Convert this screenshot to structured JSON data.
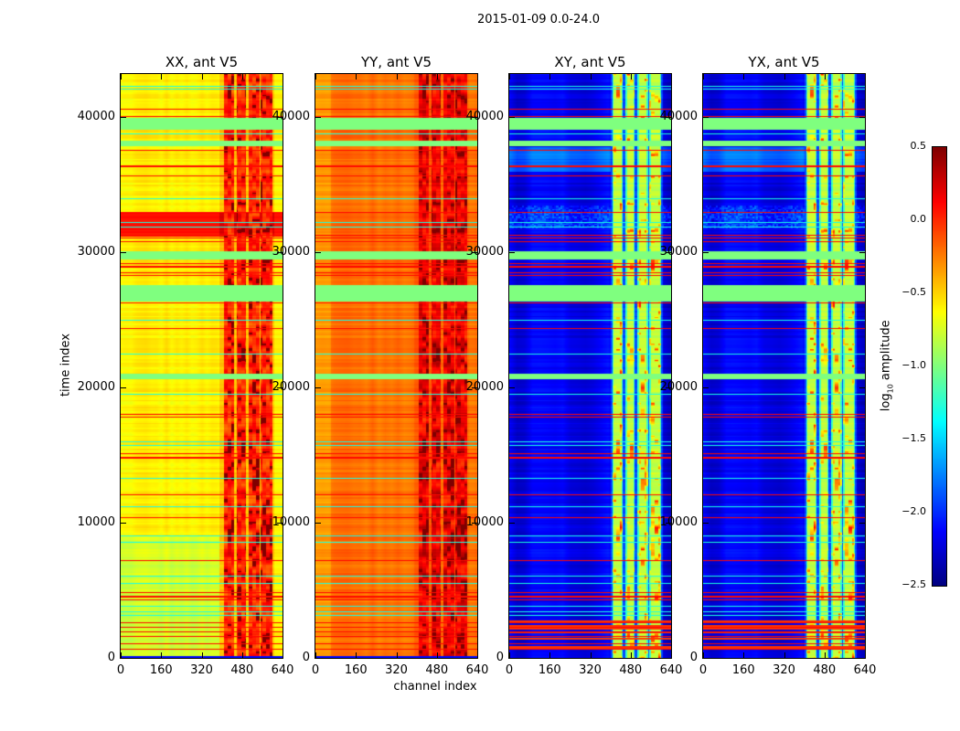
{
  "figure": {
    "suptitle": "2015-01-09 0.0-24.0",
    "xlabel": "channel index",
    "ylabel": "time index"
  },
  "chart_data": [
    {
      "type": "heatmap",
      "title": "XX, ant V5",
      "xlim": [
        0,
        640
      ],
      "ylim": [
        0,
        43200
      ],
      "xticks": [
        "0",
        "160",
        "320",
        "480",
        "640"
      ],
      "yticks": [
        "0",
        "10000",
        "20000",
        "30000",
        "40000"
      ],
      "base": -0.6,
      "rfi_level": 0.05,
      "profile": "xx"
    },
    {
      "type": "heatmap",
      "title": "YY, ant V5",
      "xlim": [
        0,
        640
      ],
      "ylim": [
        0,
        43200
      ],
      "xticks": [
        "0",
        "160",
        "320",
        "480",
        "640"
      ],
      "yticks": [
        "0",
        "10000",
        "20000",
        "30000",
        "40000"
      ],
      "base": -0.2,
      "rfi_level": 0.2,
      "profile": "yy"
    },
    {
      "type": "heatmap",
      "title": "XY, ant V5",
      "xlim": [
        0,
        640
      ],
      "ylim": [
        0,
        43200
      ],
      "xticks": [
        "0",
        "160",
        "320",
        "480",
        "640"
      ],
      "yticks": [
        "0",
        "10000",
        "20000",
        "30000",
        "40000"
      ],
      "base": -2.2,
      "rfi_level": -0.8,
      "profile": "cross"
    },
    {
      "type": "heatmap",
      "title": "YX, ant V5",
      "xlim": [
        0,
        640
      ],
      "ylim": [
        0,
        43200
      ],
      "xticks": [
        "0",
        "160",
        "320",
        "480",
        "640"
      ],
      "yticks": [
        "0",
        "10000",
        "20000",
        "30000",
        "40000"
      ],
      "base": -2.2,
      "rfi_level": -0.8,
      "profile": "cross"
    }
  ],
  "shared": {
    "rfi_channel_ranges": [
      [
        405,
        448
      ],
      [
        459,
        495
      ],
      [
        506,
        546
      ],
      [
        553,
        600
      ]
    ],
    "flagged_time_ranges": [
      [
        39100,
        39950
      ],
      [
        37900,
        38300
      ],
      [
        29500,
        30100
      ],
      [
        26400,
        27600
      ],
      [
        20650,
        21050
      ]
    ],
    "flag_value": -1.0,
    "red_line_times": [
      40600,
      40100,
      37560,
      36400,
      35700,
      33000,
      31300,
      31100,
      30800,
      29170,
      28950,
      28500,
      28300,
      26260,
      24370,
      18000,
      17800,
      15100,
      14800,
      12050,
      10350,
      7170,
      4800,
      4500,
      4250,
      2570,
      2250,
      1900,
      1550,
      1000,
      600
    ],
    "cyan_line_times": [
      42300,
      42100,
      38800,
      34000,
      32200,
      31900,
      25000,
      22500,
      19500,
      16000,
      15700,
      13300,
      11200,
      9000,
      8500,
      6000,
      5500,
      3800,
      3400,
      3100
    ]
  },
  "colorbar": {
    "label": "log10 amplitude",
    "label_main": "log",
    "label_sub": "10",
    "label_rest": " amplitude",
    "range": [
      -2.5,
      0.5
    ],
    "ticks": [
      "0.5",
      "0.0",
      "−0.5",
      "−1.0",
      "−1.5",
      "−2.0",
      "−2.5"
    ],
    "tick_values": [
      0.5,
      0.0,
      -0.5,
      -1.0,
      -1.5,
      -2.0,
      -2.5
    ],
    "colormap": "jet"
  }
}
